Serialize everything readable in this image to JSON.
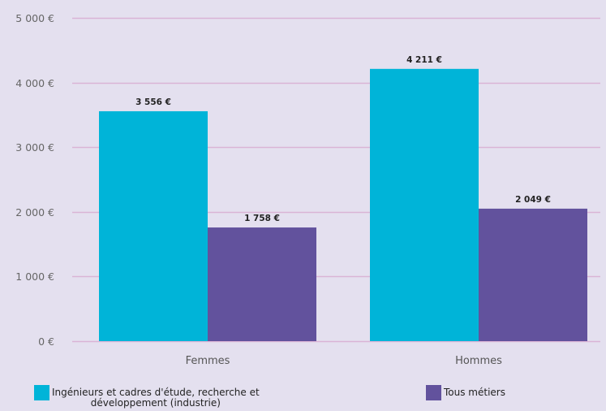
{
  "chart_data": {
    "type": "bar",
    "categories": [
      "Femmes",
      "Hommes"
    ],
    "series": [
      {
        "name": "Ingénieurs et cadres d'étude, recherche et développement (industrie)",
        "values": [
          3556,
          4211
        ],
        "value_labels": [
          "3 556 €",
          "4 211 €"
        ],
        "color": "#00b4d8"
      },
      {
        "name": "Tous métiers",
        "values": [
          1758,
          2049
        ],
        "value_labels": [
          "1 758 €",
          "2 049 €"
        ],
        "color": "#62529d"
      }
    ],
    "y_ticks": [
      0,
      1000,
      2000,
      3000,
      4000,
      5000
    ],
    "y_tick_labels": [
      "0 €",
      "1 000 €",
      "2 000 €",
      "3 000 €",
      "4 000 €",
      "5 000 €"
    ],
    "ylim": [
      0,
      5000
    ],
    "grid": true,
    "gridline_color": "#d9b4d6",
    "background_color": "#e4e0ef",
    "legend_position": "bottom"
  },
  "legend": {
    "items": [
      {
        "line1": "Ingénieurs et cadres d'étude, recherche et",
        "line2": "développement (industrie)"
      },
      {
        "line1": "Tous métiers",
        "line2": ""
      }
    ]
  }
}
